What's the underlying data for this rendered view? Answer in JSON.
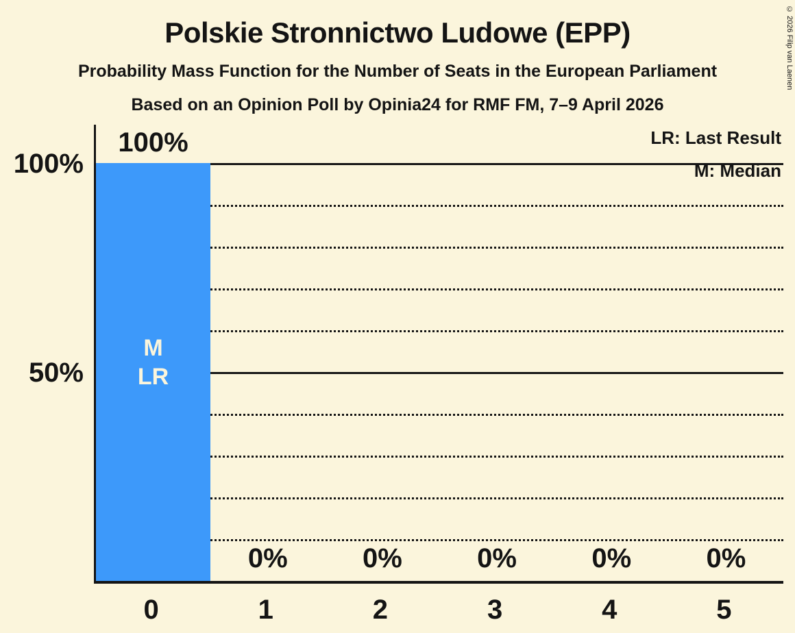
{
  "title": "Polskie Stronnictwo Ludowe (EPP)",
  "subtitles": [
    "Probability Mass Function for the Number of Seats in the European Parliament",
    "Based on an Opinion Poll by Opinia24 for RMF FM, 7–9 April 2026"
  ],
  "copyright": "© 2026 Filip van Laenen",
  "legend": {
    "last_result": "LR: Last Result",
    "median": "M: Median"
  },
  "colors": {
    "background": "#FBF5DC",
    "bar": "#3D99FA",
    "text": "#141414",
    "bar_label": "#FBF5DC"
  },
  "chart_data": {
    "type": "bar",
    "title": "Polskie Stronnictwo Ludowe (EPP)",
    "subtitle": "Probability Mass Function for the Number of Seats in the European Parliament",
    "source_note": "Based on an Opinion Poll by Opinia24 for RMF FM, 7–9 April 2026",
    "xlabel": "",
    "ylabel": "",
    "categories": [
      "0",
      "1",
      "2",
      "3",
      "4",
      "5"
    ],
    "values": [
      100,
      0,
      0,
      0,
      0,
      0
    ],
    "value_labels": [
      "100%",
      "0%",
      "0%",
      "0%",
      "0%",
      "0%"
    ],
    "median_seats": 0,
    "last_result_seats": 0,
    "bar_annotations": {
      "category": "0",
      "labels": [
        "M",
        "LR"
      ]
    },
    "legend_entries": [
      "LR: Last Result",
      "M: Median"
    ],
    "legend_position": "top-right",
    "y_axis": {
      "tick_labels": [
        "100%",
        "50%"
      ],
      "tick_values": [
        100,
        50
      ],
      "ylim": [
        0,
        109
      ],
      "solid_gridlines": [
        100,
        50
      ],
      "dotted_gridlines": [
        90,
        80,
        70,
        60,
        40,
        30,
        20,
        10
      ]
    },
    "grid": "horizontal-only"
  }
}
